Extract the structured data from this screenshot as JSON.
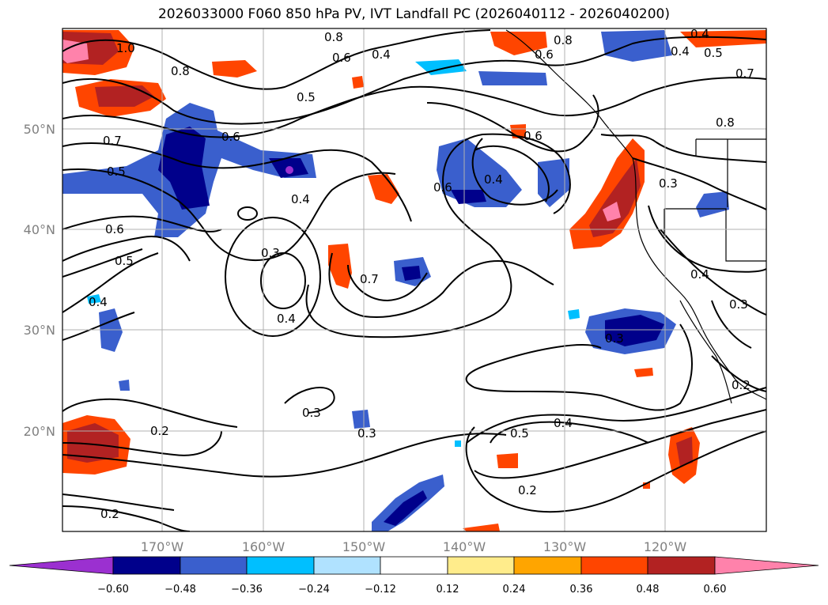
{
  "title": "2026033000 F060 850 hPa PV, IVT Landfall PC (2026040112 - 2026040200)",
  "map": {
    "lon_labels": [
      "170°W",
      "160°W",
      "150°W",
      "140°W",
      "130°W",
      "120°W"
    ],
    "lat_labels": [
      "50°N",
      "40°N",
      "30°N",
      "20°N"
    ],
    "contour_labels": [
      "1.0",
      "0.8",
      "0.8",
      "0.6",
      "0.4",
      "0.5",
      "0.7",
      "0.6",
      "0.5",
      "0.4",
      "0.6",
      "0.5",
      "0.4",
      "0.3",
      "0.4",
      "0.7",
      "0.6",
      "0.4",
      "0.6",
      "0.3",
      "0.4",
      "0.3",
      "0.3",
      "0.2",
      "0.3",
      "0.2",
      "0.5",
      "0.4",
      "0.2",
      "0.8",
      "0.6",
      "0.4",
      "0.5",
      "0.7",
      "0.8",
      "0.4",
      "0.3",
      "0.2"
    ]
  },
  "colorbar": {
    "ticks": [
      "−0.60",
      "−0.48",
      "−0.36",
      "−0.24",
      "−0.12",
      "0.12",
      "0.24",
      "0.36",
      "0.48",
      "0.60"
    ],
    "colors": [
      "#9b30d0",
      "#00008b",
      "#3a5fcd",
      "#00bfff",
      "#b0e2ff",
      "#ffffff",
      "#ffec8b",
      "#ffa500",
      "#ff4500",
      "#b22222",
      "#ff82ab"
    ]
  }
}
